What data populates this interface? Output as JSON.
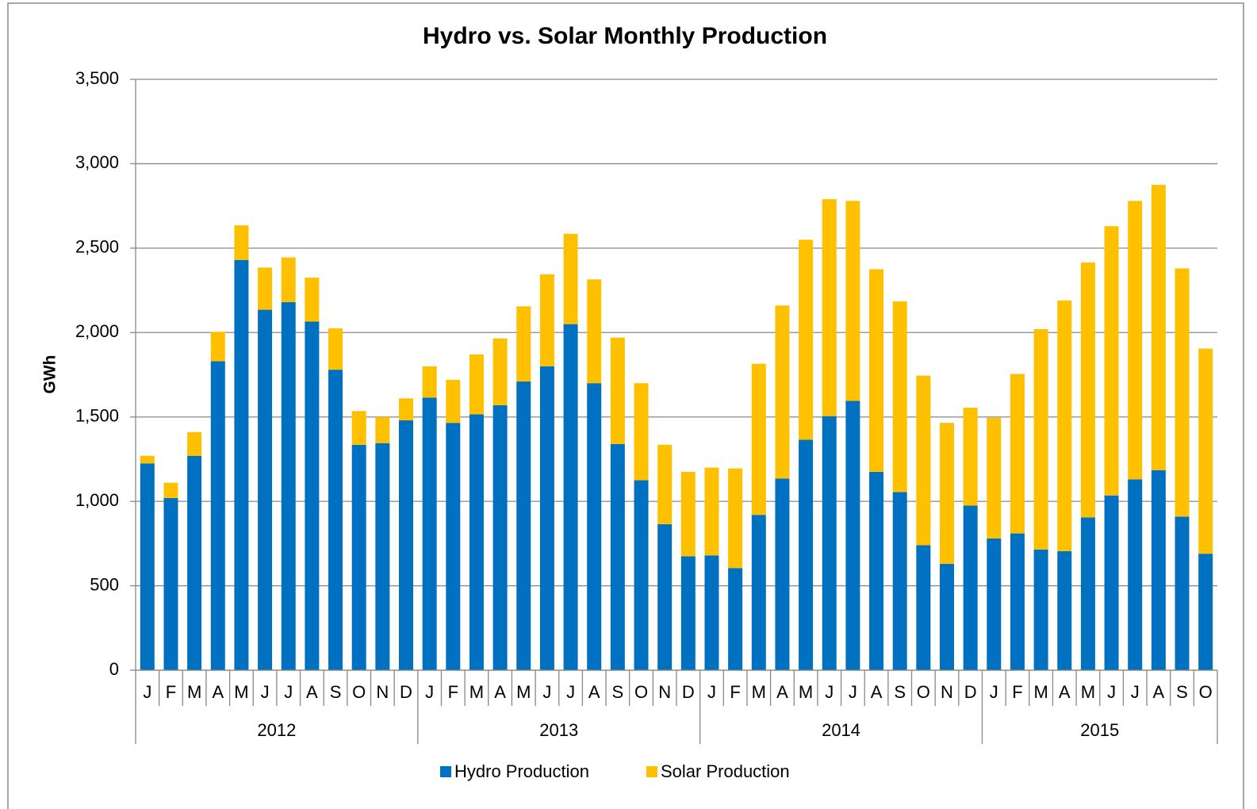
{
  "chart_data": {
    "type": "stacked_bar",
    "title": "Hydro vs. Solar Monthly Production",
    "y_label": "GWh",
    "groups": [
      {
        "label": "2012",
        "categories": [
          "J",
          "F",
          "M",
          "A",
          "M",
          "J",
          "J",
          "A",
          "S",
          "O",
          "N",
          "D"
        ]
      },
      {
        "label": "2013",
        "categories": [
          "J",
          "F",
          "M",
          "A",
          "M",
          "J",
          "J",
          "A",
          "S",
          "O",
          "N",
          "D"
        ]
      },
      {
        "label": "2014",
        "categories": [
          "J",
          "F",
          "M",
          "A",
          "M",
          "J",
          "J",
          "A",
          "S",
          "O",
          "N",
          "D"
        ]
      },
      {
        "label": "2015",
        "categories": [
          "J",
          "F",
          "M",
          "A",
          "M",
          "J",
          "J",
          "A",
          "S",
          "O"
        ]
      }
    ],
    "series": [
      {
        "name": "Hydro Production",
        "color": "#0070c0",
        "values": [
          1225,
          1020,
          1270,
          1830,
          2430,
          2135,
          2180,
          2065,
          1780,
          1335,
          1345,
          1480,
          1615,
          1465,
          1515,
          1570,
          1710,
          1800,
          2050,
          1700,
          1340,
          1125,
          865,
          675,
          680,
          605,
          920,
          1135,
          1365,
          1505,
          1595,
          1175,
          1055,
          740,
          630,
          975,
          780,
          810,
          715,
          705,
          905,
          1035,
          1130,
          1185,
          910,
          690
        ]
      },
      {
        "name": "Solar Production",
        "color": "#ffc000",
        "values": [
          45,
          90,
          140,
          175,
          205,
          250,
          265,
          260,
          245,
          200,
          155,
          130,
          185,
          255,
          355,
          395,
          445,
          545,
          535,
          615,
          630,
          575,
          470,
          500,
          520,
          590,
          895,
          1025,
          1185,
          1285,
          1185,
          1200,
          1130,
          1005,
          835,
          580,
          715,
          945,
          1305,
          1485,
          1510,
          1595,
          1650,
          1690,
          1470,
          1215
        ]
      }
    ],
    "ylim": [
      0,
      3500
    ],
    "yticks": [
      {
        "value": 0,
        "label": "0"
      },
      {
        "value": 500,
        "label": "500"
      },
      {
        "value": 1000,
        "label": "1,000"
      },
      {
        "value": 1500,
        "label": "1,500"
      },
      {
        "value": 2000,
        "label": "2,000"
      },
      {
        "value": 2500,
        "label": "2,500"
      },
      {
        "value": 3000,
        "label": "3,000"
      },
      {
        "value": 3500,
        "label": "3,500"
      }
    ],
    "grid": true,
    "legend": "bottom"
  }
}
